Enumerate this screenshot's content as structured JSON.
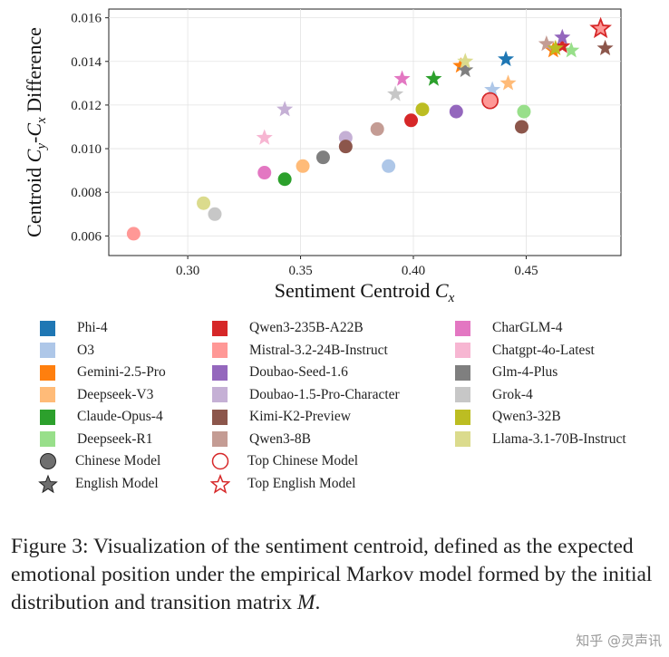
{
  "chart_data": {
    "type": "scatter",
    "title": "",
    "xlabel": "Sentiment Centroid",
    "xlabel_symbol": "C",
    "xlabel_sub": "x",
    "ylabel_prefix": "Centroid ",
    "ylabel_c1": "C",
    "ylabel_s1": "y",
    "ylabel_dash": "-",
    "ylabel_c2": "C",
    "ylabel_s2": "x",
    "ylabel_suffix": " Difference",
    "xlim": [
      0.265,
      0.492
    ],
    "ylim": [
      0.0051,
      0.0164
    ],
    "xticks": [
      "0.30",
      "0.35",
      "0.40",
      "0.45"
    ],
    "xtick_values": [
      0.3,
      0.35,
      0.4,
      0.45
    ],
    "yticks": [
      "0.006",
      "0.008",
      "0.010",
      "0.012",
      "0.014",
      "0.016"
    ],
    "ytick_values": [
      0.006,
      0.008,
      0.01,
      0.012,
      0.014,
      0.016
    ],
    "grid": true,
    "legend_position": "below",
    "series": [
      {
        "name": "Phi-4",
        "color": "#1f77b4",
        "points": [
          {
            "x": 0.441,
            "y": 0.0141,
            "marker": "star"
          }
        ]
      },
      {
        "name": "O3",
        "color": "#aec7e8",
        "points": [
          {
            "x": 0.389,
            "y": 0.0092,
            "marker": "circle"
          },
          {
            "x": 0.435,
            "y": 0.0127,
            "marker": "star"
          }
        ]
      },
      {
        "name": "Gemini-2.5-Pro",
        "color": "#ff7f0e",
        "points": [
          {
            "x": 0.421,
            "y": 0.0138,
            "marker": "star"
          },
          {
            "x": 0.462,
            "y": 0.0145,
            "marker": "star"
          }
        ]
      },
      {
        "name": "Deepseek-V3",
        "color": "#ffbb78",
        "points": [
          {
            "x": 0.351,
            "y": 0.0092,
            "marker": "circle"
          },
          {
            "x": 0.442,
            "y": 0.013,
            "marker": "star"
          }
        ]
      },
      {
        "name": "Claude-Opus-4",
        "color": "#2ca02c",
        "points": [
          {
            "x": 0.343,
            "y": 0.0086,
            "marker": "circle"
          },
          {
            "x": 0.409,
            "y": 0.0132,
            "marker": "star"
          }
        ]
      },
      {
        "name": "Deepseek-R1",
        "color": "#98df8a",
        "points": [
          {
            "x": 0.449,
            "y": 0.0117,
            "marker": "circle"
          },
          {
            "x": 0.47,
            "y": 0.0145,
            "marker": "star"
          }
        ]
      },
      {
        "name": "Qwen3-235B-A22B",
        "color": "#d62728",
        "points": [
          {
            "x": 0.399,
            "y": 0.0113,
            "marker": "circle"
          },
          {
            "x": 0.466,
            "y": 0.0147,
            "marker": "star"
          }
        ]
      },
      {
        "name": "Mistral-3.2-24B-Instruct",
        "color": "#ff9896",
        "points": [
          {
            "x": 0.276,
            "y": 0.0061,
            "marker": "circle"
          },
          {
            "x": 0.434,
            "y": 0.0122,
            "marker": "circle"
          },
          {
            "x": 0.483,
            "y": 0.0155,
            "marker": "star"
          }
        ]
      },
      {
        "name": "Doubao-Seed-1.6",
        "color": "#9467bd",
        "points": [
          {
            "x": 0.419,
            "y": 0.0117,
            "marker": "circle"
          },
          {
            "x": 0.466,
            "y": 0.0151,
            "marker": "star"
          }
        ]
      },
      {
        "name": "Doubao-1.5-Pro-Character",
        "color": "#c5b0d5",
        "points": [
          {
            "x": 0.37,
            "y": 0.0105,
            "marker": "circle"
          },
          {
            "x": 0.343,
            "y": 0.0118,
            "marker": "star"
          }
        ]
      },
      {
        "name": "Kimi-K2-Preview",
        "color": "#8c564b",
        "points": [
          {
            "x": 0.448,
            "y": 0.011,
            "marker": "circle"
          },
          {
            "x": 0.37,
            "y": 0.0101,
            "marker": "circle"
          },
          {
            "x": 0.485,
            "y": 0.0146,
            "marker": "star"
          }
        ]
      },
      {
        "name": "Qwen3-8B",
        "color": "#c49c94",
        "points": [
          {
            "x": 0.384,
            "y": 0.0109,
            "marker": "circle"
          },
          {
            "x": 0.459,
            "y": 0.0148,
            "marker": "star"
          }
        ]
      },
      {
        "name": "CharGLM-4",
        "color": "#e377c2",
        "points": [
          {
            "x": 0.334,
            "y": 0.0089,
            "marker": "circle"
          },
          {
            "x": 0.395,
            "y": 0.0132,
            "marker": "star"
          }
        ]
      },
      {
        "name": "Chatgpt-4o-Latest",
        "color": "#f7b6d2",
        "points": [
          {
            "x": 0.334,
            "y": 0.0105,
            "marker": "star"
          }
        ]
      },
      {
        "name": "Glm-4-Plus",
        "color": "#7f7f7f",
        "points": [
          {
            "x": 0.36,
            "y": 0.0096,
            "marker": "circle"
          },
          {
            "x": 0.423,
            "y": 0.0136,
            "marker": "star"
          }
        ]
      },
      {
        "name": "Grok-4",
        "color": "#c7c7c7",
        "points": [
          {
            "x": 0.312,
            "y": 0.007,
            "marker": "circle"
          },
          {
            "x": 0.392,
            "y": 0.0125,
            "marker": "star"
          }
        ]
      },
      {
        "name": "Qwen3-32B",
        "color": "#bcbd22",
        "points": [
          {
            "x": 0.404,
            "y": 0.0118,
            "marker": "circle"
          },
          {
            "x": 0.463,
            "y": 0.0146,
            "marker": "star"
          }
        ]
      },
      {
        "name": "Llama-3.1-70B-Instruct",
        "color": "#dbdb8d",
        "points": [
          {
            "x": 0.307,
            "y": 0.0075,
            "marker": "circle"
          },
          {
            "x": 0.423,
            "y": 0.014,
            "marker": "star"
          }
        ]
      }
    ],
    "highlights": [
      {
        "name": "Top Chinese Model",
        "marker": "circle",
        "x": 0.434,
        "y": 0.0122,
        "edge_color": "#d62728"
      },
      {
        "name": "Top English Model",
        "marker": "star",
        "x": 0.483,
        "y": 0.0155,
        "edge_color": "#d62728"
      }
    ],
    "marker_legend": [
      {
        "name": "Chinese Model",
        "marker": "circle"
      },
      {
        "name": "English Model",
        "marker": "star"
      }
    ]
  },
  "caption": {
    "text": "Figure 3: Visualization of the sentiment centroid, defined as the expected emotional position under the empirical Markov model formed by the initial distribution and transition matrix ",
    "math": "M",
    "end": "."
  },
  "watermark": "知乎 @灵声讯"
}
